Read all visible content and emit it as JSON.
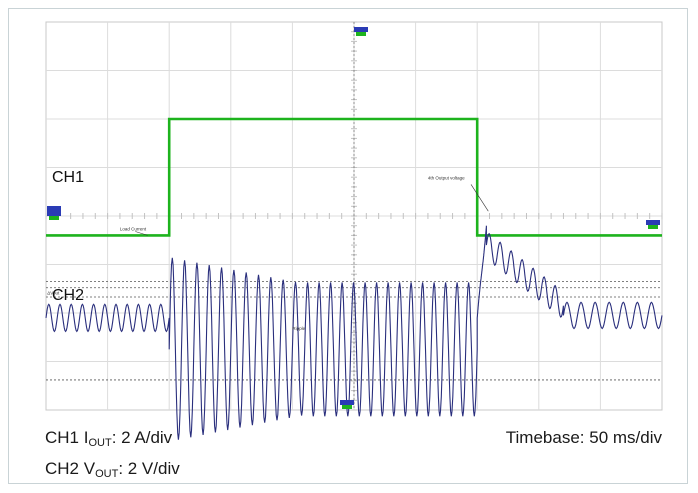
{
  "chart_data": {
    "type": "line",
    "title": "",
    "grid": true,
    "x_divisions": 10,
    "y_divisions": 8,
    "channels": {
      "ch1": {
        "label": "CH1",
        "color": "#1db31d",
        "annotation": "Load Current"
      },
      "ch2": {
        "label": "CH2",
        "color": "#2a2f7d",
        "annotation_transition": "4th Output voltage",
        "annotation_ripple": "Ripple",
        "annotation_start": "ΔVout"
      }
    },
    "series": [
      {
        "name": "CH1",
        "unit": "div",
        "points": [
          [
            0.0,
            3.6
          ],
          [
            2.0,
            3.6
          ],
          [
            2.0,
            6.0
          ],
          [
            7.0,
            6.0
          ],
          [
            7.0,
            3.6
          ],
          [
            10.0,
            3.6
          ]
        ]
      },
      {
        "name": "CH2",
        "unit": "div",
        "segments": [
          {
            "x_start": 0.0,
            "x_end": 2.0,
            "baseline": 1.9,
            "amplitude": 0.28,
            "cycles": 11
          },
          {
            "x_start": 2.0,
            "x_end": 4.2,
            "baseline": 1.25,
            "amplitude_start": 1.9,
            "amplitude_end": 1.35,
            "cycles": 11
          },
          {
            "x_start": 4.2,
            "x_end": 7.0,
            "baseline": 1.25,
            "amplitude": 1.38,
            "cycles": 15
          },
          {
            "x_start": 7.0,
            "x_end": 7.15,
            "baseline_start": 1.9,
            "baseline_end": 3.8,
            "amplitude": 0.05,
            "cycles": 1
          },
          {
            "x_start": 7.15,
            "x_end": 8.4,
            "baseline_start": 3.4,
            "baseline_end": 2.15,
            "amplitude": 0.28,
            "cycles": 7
          },
          {
            "x_start": 8.4,
            "x_end": 10.0,
            "baseline": 1.95,
            "amplitude": 0.27,
            "cycles": 7
          }
        ]
      }
    ],
    "cursors": {
      "v_cursor_x": 5.0,
      "h_cursor_y": [
        0.62,
        2.33,
        2.52,
        2.65
      ]
    }
  },
  "labels": {
    "ch1_tag": "CH1",
    "ch2_tag": "CH2",
    "ch1_caption_prefix": "CH1 I",
    "ch1_caption_sub": "OUT",
    "ch1_caption_suffix": ": 2 A/div",
    "ch2_caption_prefix": "CH2 V",
    "ch2_caption_sub": "OUT",
    "ch2_caption_suffix": ": 2 V/div",
    "timebase": "Timebase: 50 ms/div"
  }
}
